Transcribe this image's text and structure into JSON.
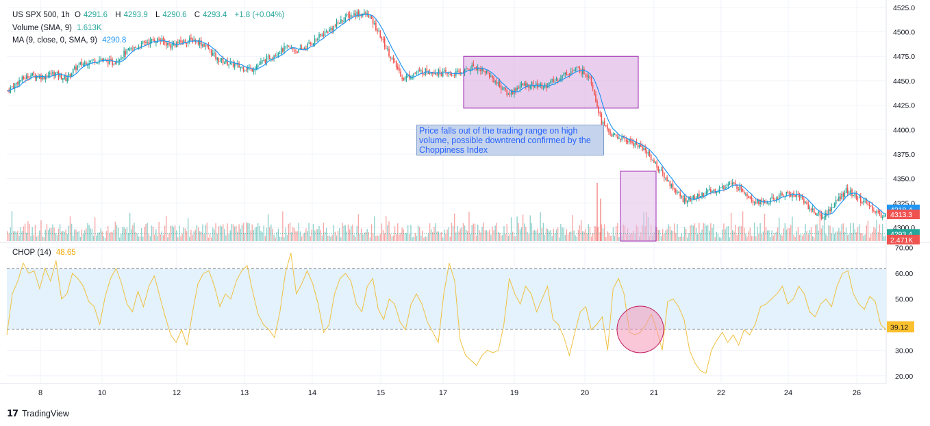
{
  "header": {
    "symbol": "US SPX 500, 1h",
    "open_label": "O",
    "open": "4291.6",
    "high_label": "H",
    "high": "4293.9",
    "low_label": "L",
    "low": "4290.6",
    "close_label": "C",
    "close": "4293.4",
    "change": "+1.8 (+0.04%)"
  },
  "volume_legend": {
    "label": "Volume (SMA, 9)",
    "value": "1.613K"
  },
  "ma_legend": {
    "label": "MA (9, close, 0, SMA, 9)",
    "value": "4290.8"
  },
  "chop_legend": {
    "label": "CHOP (14)",
    "value": "48.65"
  },
  "annotation": {
    "text": "Price falls out of the trading range on high volume, possible downtrend confirmed by the Choppiness Index"
  },
  "brand": {
    "name": "TradingView"
  },
  "colors": {
    "up": "#26a69a",
    "down": "#ef5350",
    "ma": "#2196f3",
    "chop": "#f0c040",
    "box": "#e1bee7",
    "box_border": "#9c27b0",
    "band": "#e3f2fd"
  },
  "chart_data": [
    {
      "type": "candlestick",
      "title": "US SPX 500, 1h",
      "y_ticks": [
        4300,
        4325,
        4350,
        4375,
        4400,
        4425,
        4450,
        4475,
        4500,
        4525
      ],
      "ylim": [
        4286,
        4527
      ],
      "x_ticks": [
        "8",
        "10",
        "12",
        "13",
        "14",
        "15",
        "17",
        "19",
        "20",
        "21",
        "22",
        "24",
        "26"
      ],
      "price_badges": [
        {
          "label": "4318.4",
          "value": 4318.4,
          "color": "#2196f3"
        },
        {
          "label": "4313.3",
          "value": 4313.3,
          "color": "#ef5350"
        },
        {
          "label": "4293.4",
          "value": 4293.4,
          "color": "#26a69a"
        },
        {
          "label": "2.471K",
          "value": 4287.5,
          "color": "#ef5350"
        }
      ],
      "close_path": [
        [
          0,
          4440
        ],
        [
          8,
          4450
        ],
        [
          16,
          4456
        ],
        [
          24,
          4454
        ],
        [
          32,
          4458
        ],
        [
          40,
          4452
        ],
        [
          48,
          4465
        ],
        [
          56,
          4470
        ],
        [
          64,
          4472
        ],
        [
          72,
          4468
        ],
        [
          80,
          4478
        ],
        [
          88,
          4484
        ],
        [
          96,
          4490
        ],
        [
          104,
          4492
        ],
        [
          112,
          4486
        ],
        [
          120,
          4490
        ],
        [
          128,
          4492
        ],
        [
          136,
          4486
        ],
        [
          144,
          4472
        ],
        [
          152,
          4468
        ],
        [
          160,
          4464
        ],
        [
          168,
          4462
        ],
        [
          176,
          4470
        ],
        [
          184,
          4478
        ],
        [
          192,
          4484
        ],
        [
          200,
          4480
        ],
        [
          208,
          4488
        ],
        [
          216,
          4497
        ],
        [
          224,
          4505
        ],
        [
          232,
          4515
        ],
        [
          240,
          4519
        ],
        [
          248,
          4517
        ],
        [
          256,
          4496
        ],
        [
          264,
          4472
        ],
        [
          272,
          4452
        ],
        [
          280,
          4458
        ],
        [
          288,
          4460
        ],
        [
          296,
          4459
        ],
        [
          304,
          4456
        ],
        [
          312,
          4459
        ],
        [
          320,
          4465
        ],
        [
          328,
          4460
        ],
        [
          336,
          4448
        ],
        [
          344,
          4436
        ],
        [
          352,
          4445
        ],
        [
          360,
          4446
        ],
        [
          368,
          4444
        ],
        [
          376,
          4450
        ],
        [
          384,
          4458
        ],
        [
          392,
          4462
        ],
        [
          400,
          4455
        ],
        [
          408,
          4408
        ],
        [
          416,
          4393
        ],
        [
          424,
          4390
        ],
        [
          432,
          4385
        ],
        [
          440,
          4376
        ],
        [
          448,
          4358
        ],
        [
          456,
          4343
        ],
        [
          464,
          4328
        ],
        [
          472,
          4330
        ],
        [
          480,
          4336
        ],
        [
          488,
          4338
        ],
        [
          496,
          4345
        ],
        [
          504,
          4340
        ],
        [
          512,
          4328
        ],
        [
          520,
          4325
        ],
        [
          528,
          4330
        ],
        [
          536,
          4335
        ],
        [
          544,
          4332
        ],
        [
          552,
          4318
        ],
        [
          560,
          4310
        ],
        [
          568,
          4324
        ],
        [
          576,
          4338
        ],
        [
          584,
          4330
        ],
        [
          592,
          4322
        ],
        [
          600,
          4312
        ],
        [
          603,
          4313
        ]
      ],
      "volume": {
        "label": "Volume (SMA, 9)",
        "last": "1.613K",
        "spike": {
          "value": 2.471,
          "unit": "K"
        }
      },
      "trading_range": {
        "y_top": 4475,
        "y_bottom": 4422,
        "x_from": "17",
        "x_to": "20"
      }
    },
    {
      "type": "line",
      "title": "CHOP (14)",
      "y_ticks": [
        20,
        30,
        40,
        50,
        60,
        70
      ],
      "ylim": [
        17,
        71
      ],
      "levels": [
        61.8,
        38.2
      ],
      "last": 39.12,
      "last_label": "39.12",
      "series": [
        {
          "values": [
            36,
            52,
            57,
            64,
            60,
            61,
            54,
            62,
            57,
            65,
            50,
            52,
            60,
            58,
            55,
            49,
            47,
            40,
            51,
            58,
            62,
            56,
            48,
            45,
            53,
            47,
            55,
            59,
            51,
            43,
            36,
            33,
            38,
            32,
            45,
            56,
            60,
            61,
            55,
            47,
            52,
            50,
            57,
            61,
            63,
            53,
            44,
            40,
            38,
            35,
            45,
            60,
            68,
            52,
            56,
            61,
            56,
            48,
            37,
            40,
            52,
            58,
            60,
            57,
            48,
            45,
            55,
            58,
            46,
            42,
            50,
            48,
            41,
            38,
            48,
            52,
            48,
            41,
            37,
            33,
            52,
            64,
            57,
            34,
            28,
            26,
            24,
            28,
            30,
            29,
            30,
            40,
            58,
            52,
            48,
            55,
            52,
            45,
            50,
            55,
            42,
            40,
            35,
            28,
            37,
            45,
            47,
            38,
            40,
            43,
            30,
            54,
            58,
            52,
            37,
            36,
            37,
            40,
            44,
            38,
            30,
            49,
            50,
            47,
            42,
            30,
            25,
            22,
            21,
            30,
            34,
            37,
            33,
            36,
            32,
            38,
            36,
            40,
            47,
            48,
            50,
            52,
            55,
            48,
            50,
            55,
            52,
            45,
            43,
            48,
            50,
            47,
            55,
            60,
            61,
            52,
            48,
            46,
            51,
            49,
            40,
            38
          ]
        }
      ]
    }
  ]
}
